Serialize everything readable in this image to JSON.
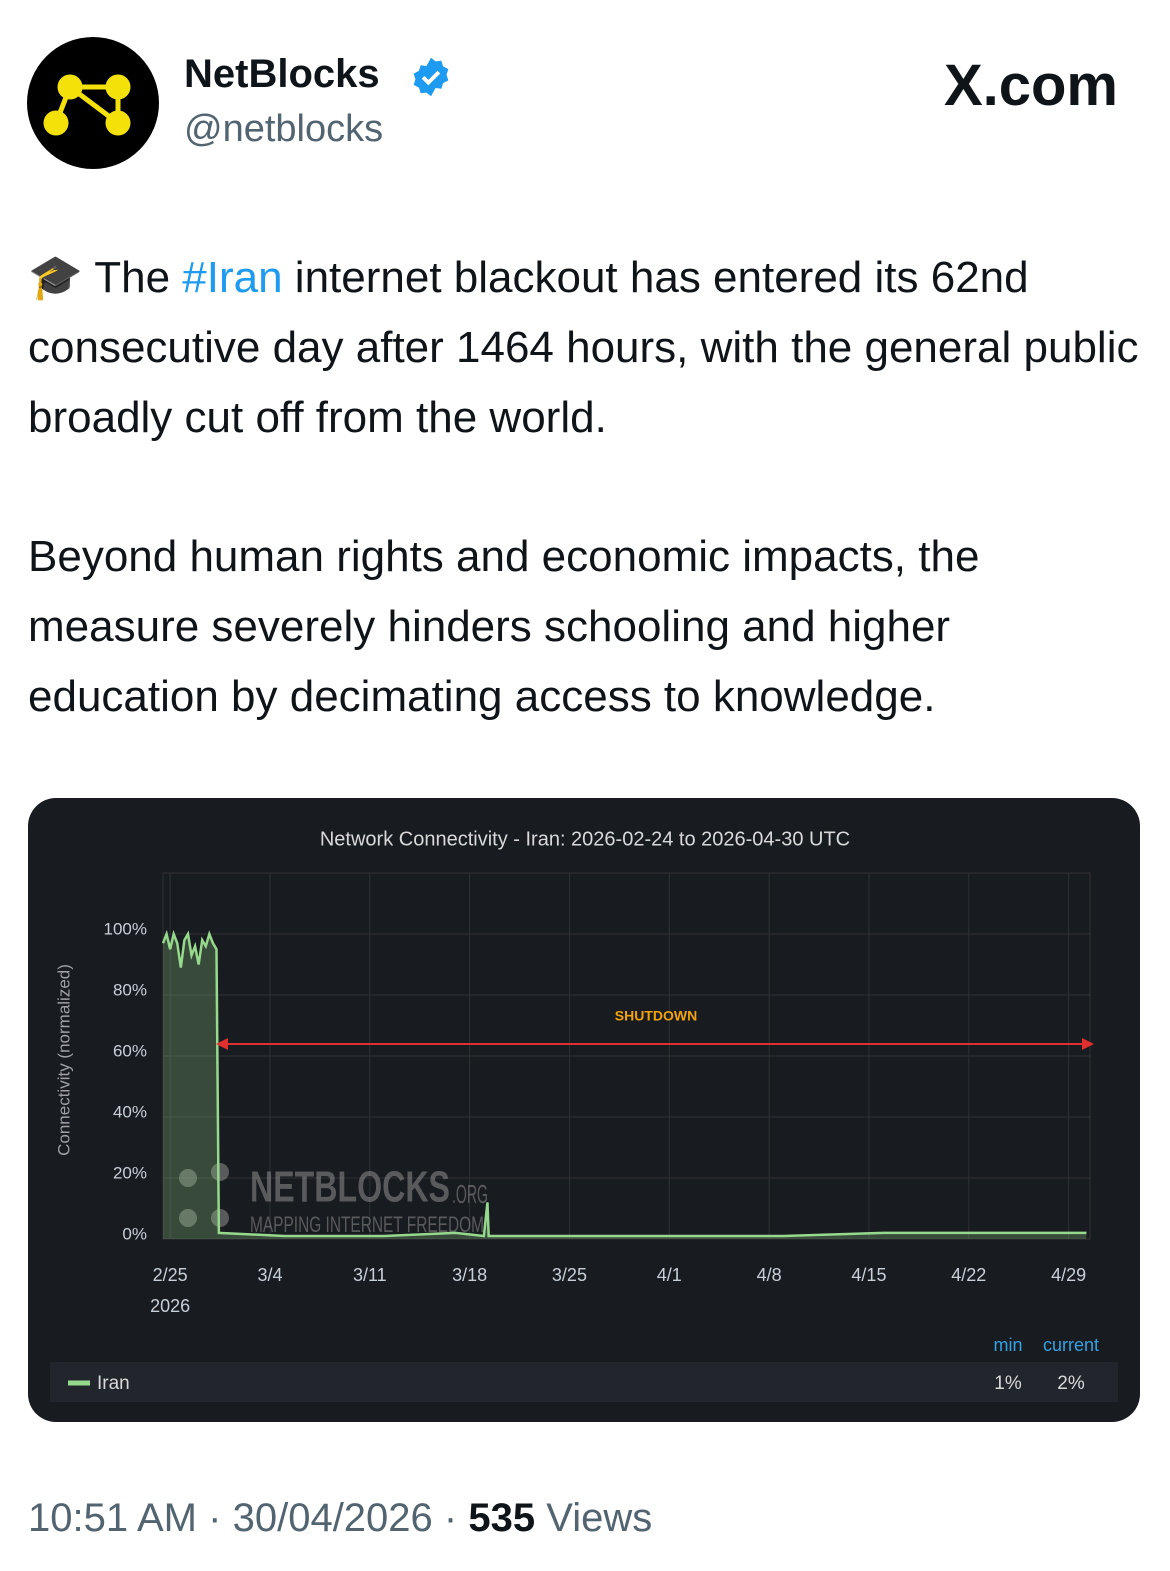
{
  "header": {
    "name": "NetBlocks",
    "handle": "@netblocks",
    "site": "X.com"
  },
  "tweet": {
    "paragraph1": {
      "before": "🎓 The ",
      "hashtag": "#Iran",
      "after": " internet blackout has entered its 62nd consecutive day after 1464 hours, with the general public broadly cut off from the world."
    },
    "paragraph2": "Beyond human rights and economic impacts, the measure severely hinders schooling and higher education by decimating access to knowledge."
  },
  "chart_data": {
    "type": "line",
    "title": "Network Connectivity - Iran: 2026-02-24 to 2026-04-30 UTC",
    "ylabel": "Connectivity (normalized)",
    "x": [
      "2026-02-24T12:00",
      "2026-02-24T18:00",
      "2026-02-25T00:00",
      "2026-02-25T06:00",
      "2026-02-25T12:00",
      "2026-02-25T18:00",
      "2026-02-26T00:00",
      "2026-02-26T06:00",
      "2026-02-26T12:00",
      "2026-02-26T18:00",
      "2026-02-27T00:00",
      "2026-02-27T06:00",
      "2026-02-27T12:00",
      "2026-02-27T18:00",
      "2026-02-28T00:00",
      "2026-02-28T06:00",
      "2026-02-28T10:00",
      "2026-03-05T00:00",
      "2026-03-12T00:00",
      "2026-03-17T00:00",
      "2026-03-19T00:00",
      "2026-03-19T06:00",
      "2026-03-19T08:00",
      "2026-03-26T00:00",
      "2026-04-02T00:00",
      "2026-04-09T00:00",
      "2026-04-16T00:00",
      "2026-04-23T00:00",
      "2026-04-30T06:00"
    ],
    "series": [
      {
        "name": "Iran",
        "color": "#96d98d",
        "values": [
          97,
          100,
          95,
          100,
          97,
          89,
          98,
          100,
          93,
          96,
          90,
          98,
          96,
          100,
          97,
          95,
          2,
          1,
          1,
          2,
          1,
          12,
          1,
          1,
          1,
          1,
          2,
          2,
          2
        ]
      }
    ],
    "xlim": [
      "2026-02-24T12:00",
      "2026-04-30T12:00"
    ],
    "xticks": [
      {
        "value": "2026-02-25T00:00",
        "label": "2/25"
      },
      {
        "value": "2026-03-04T00:00",
        "label": "3/4"
      },
      {
        "value": "2026-03-11T00:00",
        "label": "3/11"
      },
      {
        "value": "2026-03-18T00:00",
        "label": "3/18"
      },
      {
        "value": "2026-03-25T00:00",
        "label": "3/25"
      },
      {
        "value": "2026-04-01T00:00",
        "label": "4/1"
      },
      {
        "value": "2026-04-08T00:00",
        "label": "4/8"
      },
      {
        "value": "2026-04-15T00:00",
        "label": "4/15"
      },
      {
        "value": "2026-04-22T00:00",
        "label": "4/22"
      },
      {
        "value": "2026-04-29T00:00",
        "label": "4/29"
      }
    ],
    "x_year_label": "2026",
    "ylim": [
      0,
      120
    ],
    "yticks": [
      {
        "value": 0,
        "label": "0%"
      },
      {
        "value": 20,
        "label": "20%"
      },
      {
        "value": 40,
        "label": "40%"
      },
      {
        "value": 60,
        "label": "60%"
      },
      {
        "value": 80,
        "label": "80%"
      },
      {
        "value": 100,
        "label": "100%"
      }
    ],
    "grid": true,
    "annotation": "SHUTDOWN",
    "watermark": {
      "title": "NETBLOCKS",
      "suffix": ".ORG",
      "tagline": "MAPPING INTERNET FREEDOM"
    },
    "legend_stats": {
      "headers": [
        "min",
        "current"
      ],
      "values": [
        1,
        2
      ],
      "value_labels": [
        "1%",
        "2%"
      ]
    }
  },
  "footer": {
    "time": "10:51 AM",
    "separator": "·",
    "date": "30/04/2026",
    "views": "535",
    "views_label": "Views"
  }
}
